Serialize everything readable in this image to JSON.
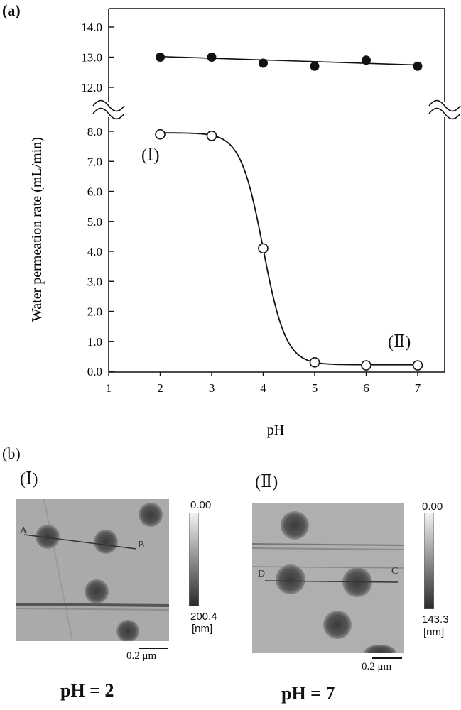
{
  "panel_a": {
    "label": "(a)",
    "chart_data": {
      "type": "scatter",
      "xlabel": "pH",
      "ylabel": "Water permeation rate (mL/min)",
      "x_ticks": [
        "1",
        "2",
        "3",
        "4",
        "5",
        "6",
        "7"
      ],
      "xlim": [
        1,
        7.5
      ],
      "y_ticks_lower": [
        "0.0",
        "1.0",
        "2.0",
        "3.0",
        "4.0",
        "5.0",
        "6.0",
        "7.0",
        "8.0"
      ],
      "y_ticks_upper": [
        "12.0",
        "13.0",
        "14.0"
      ],
      "ylim_lower": [
        0,
        8.5
      ],
      "ylim_upper": [
        11.5,
        14.5
      ],
      "axis_break": true,
      "series": [
        {
          "marker": "filled-circle",
          "x": [
            2,
            3,
            4,
            5,
            6,
            7
          ],
          "y": [
            13.0,
            13.0,
            12.8,
            12.7,
            12.9,
            12.7
          ]
        },
        {
          "marker": "open-circle",
          "x": [
            2,
            3,
            4,
            5,
            6,
            7
          ],
          "y": [
            7.9,
            7.85,
            4.1,
            0.3,
            0.2,
            0.2
          ]
        }
      ],
      "annotations": [
        {
          "text": "(Ⅰ)",
          "near_x": 2,
          "near_y": 7.9
        },
        {
          "text": "(Ⅱ)",
          "near_x": 7,
          "near_y": 0.2
        }
      ]
    }
  },
  "panel_b": {
    "label": "(b)",
    "images": [
      {
        "roman": "(Ⅰ)",
        "scale_top": "0.00",
        "scale_bottom": "200.4",
        "scale_unit": "[nm]",
        "bar_label": "0.2 μm",
        "caption": "pH = 2",
        "marker_left": "A",
        "marker_right": "B"
      },
      {
        "roman": "(Ⅱ)",
        "scale_top": "0.00",
        "scale_bottom": "143.3",
        "scale_unit": "[nm]",
        "bar_label": "0.2 μm",
        "caption": "pH = 7",
        "marker_left": "D",
        "marker_right": "C"
      }
    ]
  }
}
